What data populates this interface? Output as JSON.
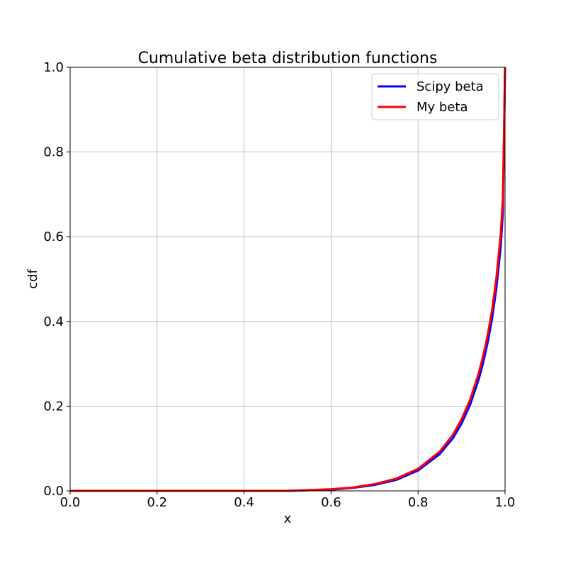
{
  "chart_data": {
    "type": "line",
    "title": "Cumulative beta distribution functions",
    "xlabel": "x",
    "ylabel": "cdf",
    "xlim": [
      0.0,
      1.0
    ],
    "ylim": [
      0.0,
      1.0
    ],
    "xticks": [
      "0.0",
      "0.2",
      "0.4",
      "0.6",
      "0.8",
      "1.0"
    ],
    "yticks": [
      "0.0",
      "0.2",
      "0.4",
      "0.6",
      "0.8",
      "1.0"
    ],
    "grid": true,
    "legend_position": "top-right",
    "series": [
      {
        "name": "Scipy beta",
        "color": "#0000ff",
        "x": [
          0.0,
          0.5,
          0.6,
          0.65,
          0.7,
          0.75,
          0.8,
          0.85,
          0.88,
          0.9,
          0.92,
          0.94,
          0.95,
          0.96,
          0.97,
          0.98,
          0.99,
          0.995,
          1.0
        ],
        "y": [
          0.0,
          0.0,
          0.003,
          0.007,
          0.014,
          0.026,
          0.048,
          0.087,
          0.124,
          0.159,
          0.204,
          0.265,
          0.304,
          0.35,
          0.405,
          0.478,
          0.576,
          0.658,
          1.0
        ]
      },
      {
        "name": "My beta",
        "color": "#ff0000",
        "x": [
          0.0,
          0.5,
          0.6,
          0.65,
          0.7,
          0.75,
          0.8,
          0.85,
          0.88,
          0.9,
          0.92,
          0.94,
          0.95,
          0.96,
          0.97,
          0.98,
          0.99,
          0.995,
          1.0
        ],
        "y": [
          0.0,
          0.0,
          0.004,
          0.008,
          0.016,
          0.029,
          0.052,
          0.093,
          0.132,
          0.169,
          0.216,
          0.28,
          0.32,
          0.368,
          0.426,
          0.502,
          0.606,
          0.69,
          1.0
        ]
      }
    ]
  }
}
